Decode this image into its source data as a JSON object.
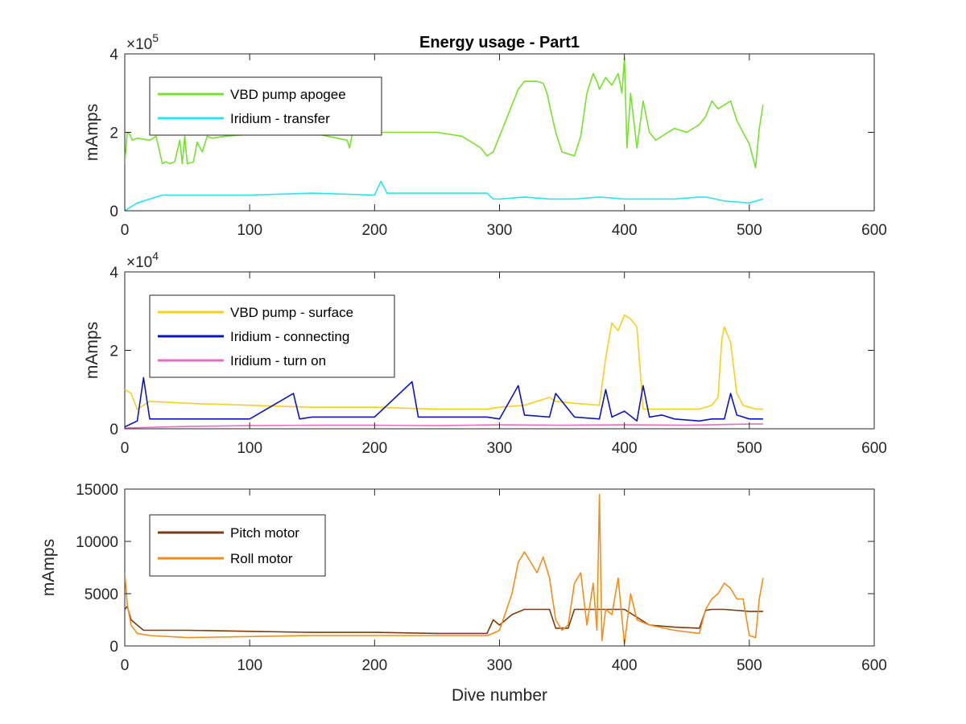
{
  "chart_data": [
    {
      "type": "line",
      "title": "Energy usage - Part1",
      "xlabel": "",
      "ylabel": "mAmps",
      "xlim": [
        0,
        600
      ],
      "ylim": [
        0,
        400000
      ],
      "xticks": [
        0,
        100,
        200,
        300,
        400,
        500,
        600
      ],
      "yticks": [
        0,
        200000,
        400000
      ],
      "ytick_labels": [
        "0",
        "2",
        "4"
      ],
      "y_exponent_base": "×10",
      "y_exponent_power": "5",
      "legend_placement": "top-left",
      "grid": false,
      "series": [
        {
          "name": "VBD pump apogee",
          "color": "#77e12e",
          "x": [
            0,
            2,
            4,
            6,
            10,
            20,
            25,
            28,
            30,
            33,
            36,
            40,
            44,
            46,
            48,
            50,
            55,
            58,
            62,
            66,
            70,
            80,
            100,
            150,
            178,
            180,
            182,
            200,
            250,
            270,
            280,
            285,
            290,
            295,
            300,
            305,
            310,
            315,
            320,
            330,
            335,
            338,
            340,
            345,
            350,
            360,
            365,
            370,
            372,
            375,
            378,
            380,
            385,
            390,
            395,
            398,
            400,
            402,
            405,
            410,
            415,
            420,
            425,
            430,
            440,
            450,
            460,
            465,
            470,
            475,
            480,
            485,
            490,
            495,
            500,
            505,
            508,
            511
          ],
          "y": [
            120000,
            200000,
            195000,
            180000,
            185000,
            180000,
            190000,
            150000,
            120000,
            125000,
            120000,
            125000,
            180000,
            120000,
            190000,
            120000,
            125000,
            175000,
            150000,
            190000,
            185000,
            190000,
            195000,
            198000,
            180000,
            160000,
            195000,
            200000,
            200000,
            190000,
            170000,
            160000,
            140000,
            150000,
            190000,
            230000,
            270000,
            310000,
            330000,
            330000,
            325000,
            300000,
            270000,
            200000,
            150000,
            140000,
            190000,
            300000,
            320000,
            350000,
            330000,
            310000,
            340000,
            320000,
            350000,
            300000,
            390000,
            160000,
            300000,
            160000,
            280000,
            200000,
            180000,
            190000,
            210000,
            200000,
            220000,
            240000,
            280000,
            260000,
            270000,
            280000,
            230000,
            200000,
            170000,
            110000,
            210000,
            270000
          ]
        },
        {
          "name": "Iridium - transfer",
          "color": "#28e6f0",
          "x": [
            0,
            10,
            30,
            60,
            100,
            150,
            200,
            205,
            210,
            250,
            290,
            295,
            300,
            320,
            340,
            360,
            380,
            400,
            420,
            440,
            460,
            465,
            480,
            500,
            511
          ],
          "y": [
            0,
            20000,
            40000,
            40000,
            40000,
            45000,
            40000,
            75000,
            45000,
            45000,
            45000,
            30000,
            30000,
            35000,
            30000,
            30000,
            35000,
            30000,
            30000,
            30000,
            35000,
            35000,
            25000,
            20000,
            30000
          ]
        }
      ]
    },
    {
      "type": "line",
      "title": "",
      "xlabel": "",
      "ylabel": "mAmps",
      "xlim": [
        0,
        600
      ],
      "ylim": [
        0,
        40000
      ],
      "xticks": [
        0,
        100,
        200,
        300,
        400,
        500,
        600
      ],
      "yticks": [
        0,
        20000,
        40000
      ],
      "ytick_labels": [
        "0",
        "2",
        "4"
      ],
      "y_exponent_base": "×10",
      "y_exponent_power": "4",
      "legend_placement": "top-left",
      "grid": false,
      "series": [
        {
          "name": "VBD pump - surface",
          "color": "#f6cf1f",
          "x": [
            0,
            5,
            10,
            20,
            50,
            100,
            150,
            200,
            250,
            290,
            300,
            320,
            340,
            345,
            360,
            380,
            385,
            390,
            395,
            400,
            405,
            410,
            415,
            420,
            440,
            460,
            470,
            475,
            478,
            480,
            485,
            490,
            495,
            500,
            505,
            511
          ],
          "y": [
            10000,
            9000,
            5000,
            7000,
            6500,
            6000,
            5500,
            5500,
            5000,
            5000,
            5500,
            6000,
            8000,
            7000,
            6500,
            6000,
            18000,
            27000,
            25000,
            29000,
            28000,
            26000,
            5000,
            5000,
            5000,
            5000,
            6000,
            8000,
            23000,
            26000,
            22000,
            9000,
            6000,
            5500,
            5000,
            5000
          ]
        },
        {
          "name": "Iridium - connecting",
          "color": "#0d16b9",
          "x": [
            0,
            10,
            15,
            20,
            50,
            100,
            135,
            140,
            150,
            200,
            230,
            235,
            250,
            290,
            300,
            315,
            320,
            340,
            345,
            360,
            380,
            385,
            390,
            400,
            410,
            415,
            420,
            430,
            440,
            460,
            470,
            480,
            485,
            490,
            500,
            511
          ],
          "y": [
            500,
            2000,
            13000,
            2500,
            2500,
            2500,
            9000,
            2500,
            3000,
            3000,
            12000,
            3000,
            3000,
            3000,
            2500,
            11000,
            3500,
            3000,
            9000,
            3000,
            2500,
            10000,
            3000,
            4500,
            2000,
            11000,
            3000,
            3500,
            2500,
            2000,
            2500,
            2500,
            9000,
            3500,
            2500,
            2500
          ]
        },
        {
          "name": "Iridium - turn on",
          "color": "#e46fc0",
          "x": [
            0,
            50,
            100,
            150,
            200,
            250,
            300,
            350,
            400,
            450,
            500,
            511
          ],
          "y": [
            200,
            600,
            800,
            900,
            900,
            800,
            1000,
            900,
            1000,
            900,
            1200,
            1200
          ]
        }
      ]
    },
    {
      "type": "line",
      "title": "",
      "xlabel": "Dive number",
      "ylabel": "mAmps",
      "xlim": [
        0,
        600
      ],
      "ylim": [
        0,
        15000
      ],
      "xticks": [
        0,
        100,
        200,
        300,
        400,
        500,
        600
      ],
      "yticks": [
        0,
        5000,
        10000,
        15000
      ],
      "ytick_labels": [
        "0",
        "5000",
        "10000",
        "15000"
      ],
      "legend_placement": "top-left",
      "grid": false,
      "series": [
        {
          "name": "Pitch motor",
          "color": "#7b3a10",
          "x": [
            0,
            2,
            5,
            10,
            15,
            20,
            50,
            100,
            150,
            200,
            250,
            290,
            295,
            300,
            310,
            320,
            340,
            345,
            355,
            360,
            370,
            380,
            400,
            420,
            440,
            460,
            465,
            470,
            480,
            500,
            511
          ],
          "y": [
            3500,
            3800,
            2500,
            2000,
            1500,
            1500,
            1500,
            1400,
            1300,
            1300,
            1200,
            1200,
            2500,
            2000,
            3000,
            3500,
            3500,
            1700,
            1700,
            3500,
            3500,
            3500,
            3500,
            2000,
            1800,
            1700,
            3400,
            3500,
            3500,
            3300,
            3300
          ]
        },
        {
          "name": "Roll motor",
          "color": "#f28d18",
          "x": [
            0,
            2,
            5,
            10,
            20,
            50,
            100,
            150,
            200,
            250,
            290,
            295,
            300,
            310,
            315,
            320,
            325,
            330,
            335,
            340,
            345,
            350,
            355,
            360,
            365,
            370,
            375,
            378,
            380,
            382,
            385,
            390,
            395,
            400,
            405,
            410,
            420,
            440,
            460,
            465,
            470,
            475,
            480,
            485,
            490,
            495,
            500,
            505,
            508,
            511
          ],
          "y": [
            7000,
            4000,
            2000,
            1200,
            1000,
            800,
            900,
            1000,
            1000,
            1000,
            1000,
            1200,
            1500,
            5000,
            8000,
            9000,
            8000,
            7000,
            8500,
            6500,
            2500,
            1500,
            2000,
            6000,
            7000,
            2000,
            6000,
            1500,
            14500,
            500,
            3500,
            3000,
            6500,
            200,
            5000,
            2500,
            2000,
            1500,
            1200,
            3500,
            4500,
            5000,
            6000,
            5500,
            4500,
            4500,
            1000,
            800,
            4500,
            6500
          ]
        }
      ]
    }
  ]
}
